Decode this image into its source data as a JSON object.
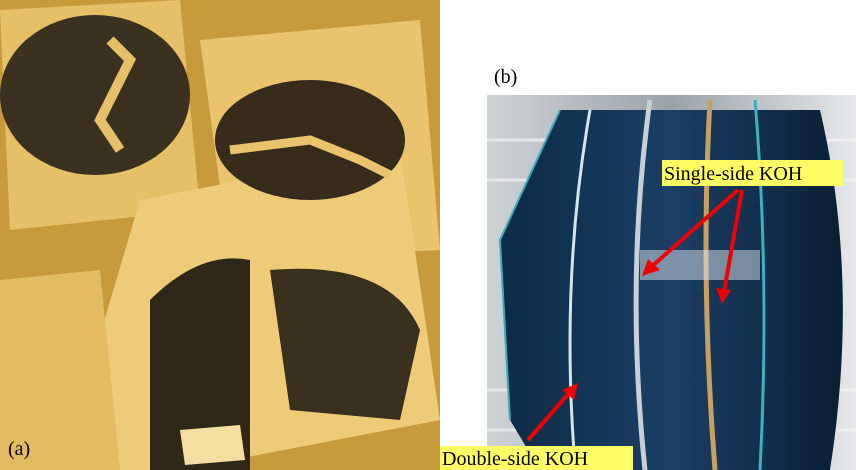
{
  "panels": [
    {
      "label": "(a)"
    },
    {
      "label": "(b)",
      "annotations": [
        {
          "text": "Single-side KOH"
        },
        {
          "text": "Double-side KOH"
        }
      ]
    }
  ]
}
